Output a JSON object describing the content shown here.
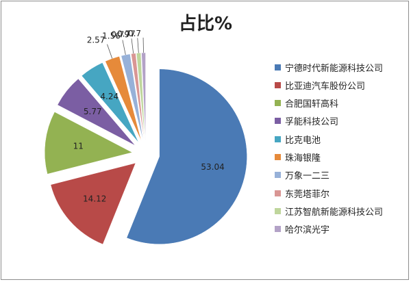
{
  "chart_data": {
    "type": "pie",
    "title": "占比%",
    "categories": [
      "宁德时代新能源科技公司",
      "比亚迪汽车股份公司",
      "合肥国轩高科",
      "孚能科技公司",
      "比克电池",
      "珠海银隆",
      "万象一二三",
      "东莞塔菲尔",
      "江苏智航新能源科技公司",
      "哈尔滨光宇"
    ],
    "values": [
      53.04,
      14.12,
      11,
      5.77,
      4.24,
      2.57,
      1.56,
      0.79,
      0.77,
      0.7
    ],
    "value_labels": [
      "53.04",
      "14.12",
      "11",
      "5.77",
      "4.24",
      "2.57",
      "1.56",
      "0.79",
      "0.77",
      "0.7"
    ],
    "colors": [
      "#4a7ab5",
      "#b84a48",
      "#93b252",
      "#7b5ea3",
      "#46a6c2",
      "#e68a3a",
      "#97b1d8",
      "#d99694",
      "#bfd69c",
      "#b3a2c7"
    ],
    "exploded": true,
    "legend_position": "right"
  }
}
